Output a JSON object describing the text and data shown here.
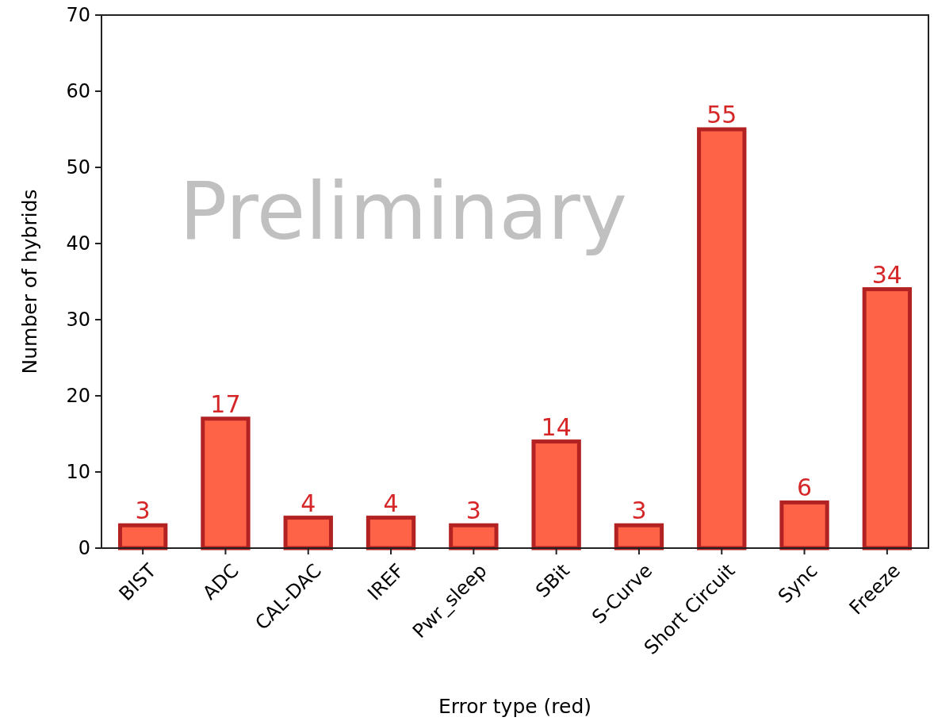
{
  "chart_data": {
    "type": "bar",
    "xlabel": "Error type (red)",
    "ylabel": "Number of hybrids",
    "categories": [
      "BIST",
      "ADC",
      "CAL-DAC",
      "IREF",
      "Pwr_sleep",
      "SBit",
      "S-Curve",
      "Short Circuit",
      "Sync",
      "Freeze"
    ],
    "values": [
      3,
      17,
      4,
      4,
      3,
      14,
      3,
      55,
      6,
      34
    ],
    "color": "#ff6347",
    "ylim": [
      0,
      70
    ],
    "yticks": [
      0,
      10,
      20,
      30,
      40,
      50,
      60,
      70
    ],
    "data_labels": true,
    "grid": false,
    "annotations": [
      "Preliminary"
    ]
  }
}
